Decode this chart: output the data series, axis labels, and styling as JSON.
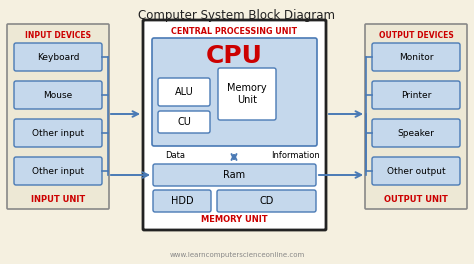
{
  "title": "Computer System Block Diagram",
  "bg_color": "#f5f0e0",
  "box_fill_light": "#c5d8ec",
  "box_stroke": "#4a7ab5",
  "outer_stroke": "#888888",
  "cpu_outer_stroke": "#222222",
  "red_label": "#cc0000",
  "watermark": "www.learncomputerscienceonline.com",
  "input_devices": [
    "Keyboard",
    "Mouse",
    "Other input",
    "Other input"
  ],
  "output_devices": [
    "Monitor",
    "Printer",
    "Speaker",
    "Other output"
  ],
  "input_label_top": "INPUT DEVICES",
  "input_label_bot": "INPUT UNIT",
  "output_label_top": "OUTPUT DEVICES",
  "output_label_bot": "OUTPUT UNIT",
  "cpu_label": "CENTRAL PROCESSING UNIT",
  "cpu_big": "CPU",
  "memory_label": "MEMORY UNIT",
  "data_label": "Data",
  "info_label": "Information",
  "outer_bg": "#ede8d5"
}
